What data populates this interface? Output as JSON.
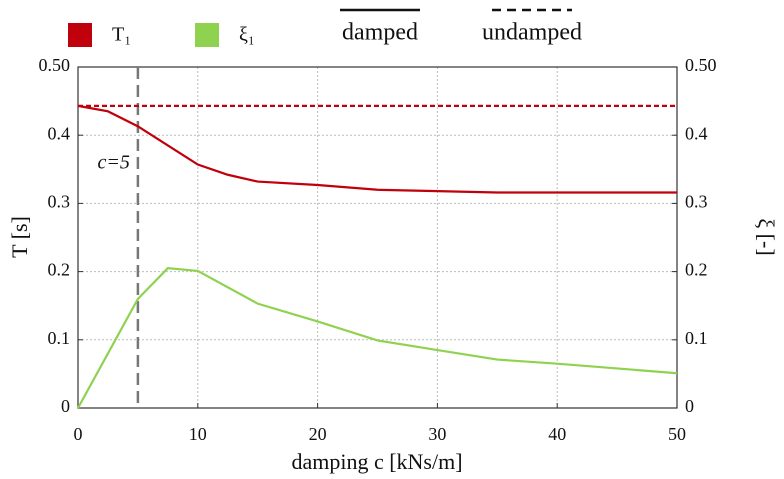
{
  "chart_data": {
    "type": "line",
    "xlabel": "damping c [kNs/m]",
    "ylabel": "T [s]",
    "y2label": "ξ [-]",
    "xlim": [
      0,
      50
    ],
    "xticks": [
      0,
      10,
      20,
      30,
      40,
      50
    ],
    "ylim": [
      0,
      0.5
    ],
    "yticks": [
      0,
      0.1,
      0.2,
      0.3,
      0.4,
      {
        "value": 0.5,
        "label": "0.50"
      }
    ],
    "y2lim": [
      0,
      0.5
    ],
    "y2ticks": [
      0,
      0.1,
      0.2,
      0.3,
      0.4,
      {
        "value": 0.5,
        "label": "0.50"
      }
    ],
    "grid": true,
    "legend": {
      "colors": [
        {
          "label": "T₁",
          "color": "#c0000a"
        },
        {
          "label": "ξ₁",
          "color": "#8fd24f"
        }
      ],
      "styles": [
        {
          "label": "damped",
          "dash": "solid"
        },
        {
          "label": "undamped",
          "dash": "dashed"
        }
      ]
    },
    "vline": {
      "x": 5,
      "label": "c=5"
    },
    "series": [
      {
        "color": "#c0000a",
        "dash": "solid",
        "axis": "y",
        "x": [
          0,
          2.5,
          5,
          7.5,
          10,
          12.5,
          15,
          20,
          25,
          30,
          35,
          40,
          50
        ],
        "values": [
          0.443,
          0.435,
          0.413,
          0.385,
          0.357,
          0.342,
          0.332,
          0.327,
          0.32,
          0.318,
          0.316,
          0.316,
          0.316
        ]
      },
      {
        "color": "#c0000a",
        "dash": "dashed",
        "axis": "y",
        "x": [
          0,
          50
        ],
        "values": [
          0.443,
          0.443
        ]
      },
      {
        "color": "#8fd24f",
        "dash": "solid",
        "axis": "y2",
        "x": [
          0,
          5,
          7.5,
          10,
          15,
          20,
          25,
          30,
          35,
          40,
          45,
          50
        ],
        "values": [
          0,
          0.16,
          0.205,
          0.201,
          0.153,
          0.127,
          0.099,
          0.085,
          0.071,
          0.065,
          0.058,
          0.051
        ]
      }
    ]
  }
}
